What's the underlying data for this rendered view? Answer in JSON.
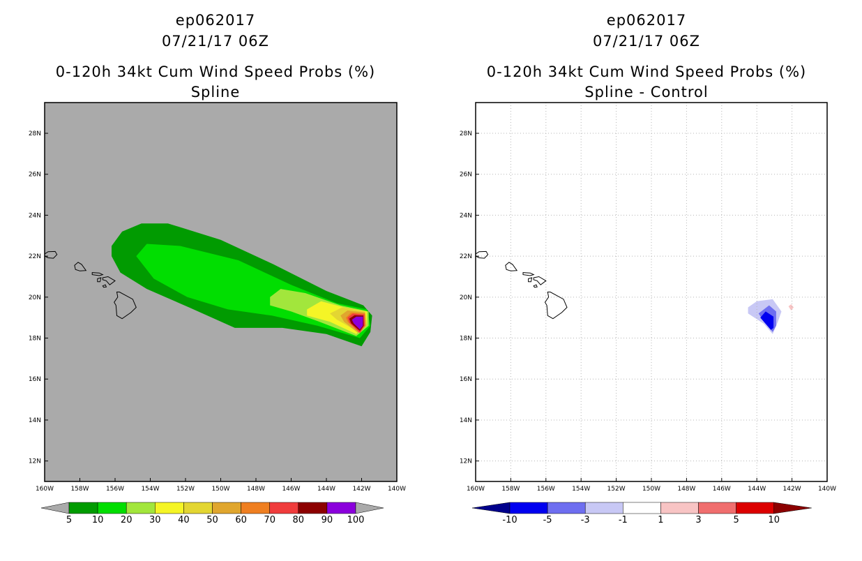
{
  "chart_data": [
    {
      "type": "filled-contour-map",
      "title_lines": [
        "ep062017",
        "07/21/17 06Z",
        "0-120h 34kt Cum Wind Speed Probs (%)",
        "Spline"
      ],
      "x_ticks": [
        "160W",
        "158W",
        "156W",
        "154W",
        "152W",
        "150W",
        "148W",
        "146W",
        "144W",
        "142W",
        "140W"
      ],
      "y_ticks": [
        "28N",
        "26N",
        "24N",
        "22N",
        "20N",
        "18N",
        "16N",
        "14N",
        "12N"
      ],
      "lon_range": [
        -160,
        -140
      ],
      "lat_range": [
        11,
        29.5
      ],
      "background_color": "#aaaaaa",
      "colorbar": {
        "labels": [
          "5",
          "10",
          "20",
          "30",
          "40",
          "50",
          "60",
          "70",
          "80",
          "90",
          "100"
        ],
        "colors": [
          "#019b01",
          "#01de01",
          "#a2e63c",
          "#f5f526",
          "#e3d632",
          "#e0a62e",
          "#ef7f21",
          "#f03c3c",
          "#8c0000",
          "#8b00dc"
        ],
        "end_color": "#aaaaaa"
      },
      "levels": [
        {
          "min": 5,
          "color": "#019b01",
          "polygon": [
            [
              -156.2,
              22.5
            ],
            [
              -155.6,
              23.2
            ],
            [
              -154.5,
              23.6
            ],
            [
              -153,
              23.6
            ],
            [
              -150,
              22.8
            ],
            [
              -147,
              21.6
            ],
            [
              -144,
              20.3
            ],
            [
              -141.9,
              19.6
            ],
            [
              -141.4,
              19.1
            ],
            [
              -141.5,
              18.3
            ],
            [
              -142,
              17.6
            ],
            [
              -144,
              18.2
            ],
            [
              -146.5,
              18.5
            ],
            [
              -149.2,
              18.5
            ],
            [
              -151.8,
              19.5
            ],
            [
              -154.2,
              20.4
            ],
            [
              -155.7,
              21.2
            ],
            [
              -156.2,
              22
            ]
          ]
        },
        {
          "min": 10,
          "color": "#01de01",
          "polygon": [
            [
              -154.8,
              22
            ],
            [
              -154.2,
              22.6
            ],
            [
              -152.3,
              22.5
            ],
            [
              -149,
              21.8
            ],
            [
              -146,
              20.6
            ],
            [
              -143.4,
              19.7
            ],
            [
              -141.7,
              19.4
            ],
            [
              -141.5,
              18.6
            ],
            [
              -142.1,
              18
            ],
            [
              -144.5,
              18.6
            ],
            [
              -147.1,
              19.1
            ],
            [
              -149.6,
              19.4
            ],
            [
              -151.9,
              20
            ],
            [
              -153.8,
              20.9
            ]
          ]
        },
        {
          "min": 20,
          "color": "#a2e63c",
          "polygon": [
            [
              -147.2,
              20
            ],
            [
              -146.6,
              20.4
            ],
            [
              -145.2,
              20.2
            ],
            [
              -143.2,
              19.6
            ],
            [
              -141.6,
              19.3
            ],
            [
              -141.6,
              18.6
            ],
            [
              -142.3,
              18.1
            ],
            [
              -144.4,
              18.8
            ],
            [
              -146,
              19.3
            ],
            [
              -147.2,
              19.6
            ]
          ]
        },
        {
          "min": 30,
          "color": "#f5f526",
          "polygon": [
            [
              -145.1,
              19.4
            ],
            [
              -144.3,
              19.8
            ],
            [
              -143,
              19.5
            ],
            [
              -141.7,
              19.3
            ],
            [
              -141.7,
              18.7
            ],
            [
              -142.3,
              18.2
            ],
            [
              -143.8,
              18.8
            ],
            [
              -145.1,
              19.1
            ]
          ]
        },
        {
          "min": 40,
          "color": "#e3d632",
          "polygon": [
            [
              -143.8,
              19.2
            ],
            [
              -143.1,
              19.5
            ],
            [
              -141.8,
              19.3
            ],
            [
              -141.7,
              18.6
            ],
            [
              -142.2,
              18.3
            ],
            [
              -143.4,
              18.9
            ]
          ]
        },
        {
          "min": 50,
          "color": "#e0a62e",
          "polygon": [
            [
              -143.2,
              19.1
            ],
            [
              -142.8,
              19.35
            ],
            [
              -141.8,
              19.25
            ],
            [
              -141.75,
              18.6
            ],
            [
              -142.2,
              18.25
            ],
            [
              -143,
              18.8
            ]
          ]
        },
        {
          "min": 60,
          "color": "#ef7f21",
          "polygon": [
            [
              -142.9,
              19
            ],
            [
              -142.6,
              19.25
            ],
            [
              -141.8,
              19.2
            ],
            [
              -141.8,
              18.6
            ],
            [
              -142.15,
              18.3
            ],
            [
              -142.8,
              18.8
            ]
          ]
        },
        {
          "min": 70,
          "color": "#f03c3c",
          "polygon": [
            [
              -142.8,
              19
            ],
            [
              -142.5,
              19.2
            ],
            [
              -141.85,
              19.15
            ],
            [
              -141.82,
              18.6
            ],
            [
              -142.1,
              18.25
            ],
            [
              -142.7,
              18.75
            ]
          ]
        },
        {
          "min": 80,
          "color": "#8c0000",
          "polygon": [
            [
              -142.7,
              18.95
            ],
            [
              -142.4,
              19.12
            ],
            [
              -141.9,
              19.1
            ],
            [
              -141.88,
              18.6
            ],
            [
              -142.1,
              18.35
            ],
            [
              -142.6,
              18.72
            ]
          ]
        },
        {
          "min": 90,
          "color": "#8b00dc",
          "polygon": [
            [
              -142.55,
              18.9
            ],
            [
              -142.3,
              19.05
            ],
            [
              -141.92,
              19.05
            ],
            [
              -141.93,
              18.6
            ],
            [
              -142.1,
              18.42
            ],
            [
              -142.45,
              18.72
            ]
          ]
        }
      ]
    },
    {
      "type": "filled-contour-map",
      "title_lines": [
        "ep062017",
        "07/21/17 06Z",
        "0-120h 34kt Cum Wind Speed Probs (%)",
        "Spline - Control"
      ],
      "x_ticks": [
        "160W",
        "158W",
        "156W",
        "154W",
        "152W",
        "150W",
        "148W",
        "146W",
        "144W",
        "142W",
        "140W"
      ],
      "y_ticks": [
        "28N",
        "26N",
        "24N",
        "22N",
        "20N",
        "18N",
        "16N",
        "14N",
        "12N"
      ],
      "lon_range": [
        -160,
        -140
      ],
      "lat_range": [
        11,
        29.5
      ],
      "background_color": "#ffffff",
      "colorbar": {
        "labels": [
          "-10",
          "-5",
          "-3",
          "-1",
          "1",
          "3",
          "5",
          "10"
        ],
        "colors": [
          "#0000f0",
          "#6e6ef0",
          "#c8c8f5",
          "#ffffff",
          "#f8c4c4",
          "#f06e6e",
          "#dc0000"
        ],
        "start_color": "#00008c",
        "end_color": "#8c0000"
      },
      "levels": [
        {
          "min": -3,
          "color": "#c8c8f5",
          "polygon": [
            [
              -144.5,
              19.5
            ],
            [
              -144,
              19.8
            ],
            [
              -143.1,
              19.9
            ],
            [
              -142.6,
              19.3
            ],
            [
              -142.8,
              18.8
            ],
            [
              -143.1,
              18.2
            ],
            [
              -143.6,
              18.7
            ],
            [
              -144.5,
              19.2
            ]
          ]
        },
        {
          "min": -5,
          "color": "#6e6ef0",
          "polygon": [
            [
              -143.9,
              19.2
            ],
            [
              -143.3,
              19.6
            ],
            [
              -142.9,
              19.3
            ],
            [
              -142.9,
              18.6
            ],
            [
              -143.1,
              18.3
            ],
            [
              -143.6,
              18.8
            ]
          ]
        },
        {
          "min": -10,
          "color": "#0000f0",
          "polygon": [
            [
              -143.8,
              19
            ],
            [
              -143.5,
              19.3
            ],
            [
              -143.05,
              19.05
            ],
            [
              -143.05,
              18.5
            ],
            [
              -143.2,
              18.4
            ],
            [
              -143.6,
              18.8
            ]
          ]
        },
        {
          "min": 1,
          "color": "#f8c4c4",
          "polygon": [
            [
              -142.2,
              19.55
            ],
            [
              -142.05,
              19.65
            ],
            [
              -141.9,
              19.5
            ],
            [
              -142.05,
              19.35
            ]
          ]
        }
      ]
    }
  ],
  "coastline": [
    [
      [
        -160.1,
        22.05
      ],
      [
        -159.8,
        22.22
      ],
      [
        -159.4,
        22.23
      ],
      [
        -159.3,
        22.08
      ],
      [
        -159.5,
        21.9
      ],
      [
        -159.8,
        21.92
      ]
    ],
    [
      [
        -158.3,
        21.55
      ],
      [
        -158.1,
        21.7
      ],
      [
        -157.9,
        21.6
      ],
      [
        -157.65,
        21.3
      ],
      [
        -158.0,
        21.28
      ],
      [
        -158.25,
        21.35
      ]
    ],
    [
      [
        -157.3,
        21.2
      ],
      [
        -156.9,
        21.18
      ],
      [
        -156.7,
        21.1
      ],
      [
        -156.9,
        21.05
      ],
      [
        -157.3,
        21.1
      ]
    ],
    [
      [
        -156.7,
        20.95
      ],
      [
        -156.4,
        21.0
      ],
      [
        -156.0,
        20.8
      ],
      [
        -156.3,
        20.6
      ],
      [
        -156.5,
        20.8
      ],
      [
        -156.7,
        20.85
      ]
    ],
    [
      [
        -157.0,
        20.9
      ],
      [
        -156.8,
        20.95
      ],
      [
        -156.85,
        20.75
      ],
      [
        -157.0,
        20.75
      ]
    ],
    [
      [
        -155.9,
        20.25
      ],
      [
        -155.75,
        20.25
      ],
      [
        -155.0,
        19.9
      ],
      [
        -154.8,
        19.5
      ],
      [
        -155.1,
        19.25
      ],
      [
        -155.6,
        18.95
      ],
      [
        -155.9,
        19.1
      ],
      [
        -155.95,
        19.6
      ],
      [
        -156.05,
        19.75
      ],
      [
        -155.85,
        20.0
      ]
    ],
    [
      [
        -156.7,
        20.55
      ],
      [
        -156.55,
        20.6
      ],
      [
        -156.5,
        20.5
      ],
      [
        -156.65,
        20.48
      ]
    ]
  ]
}
